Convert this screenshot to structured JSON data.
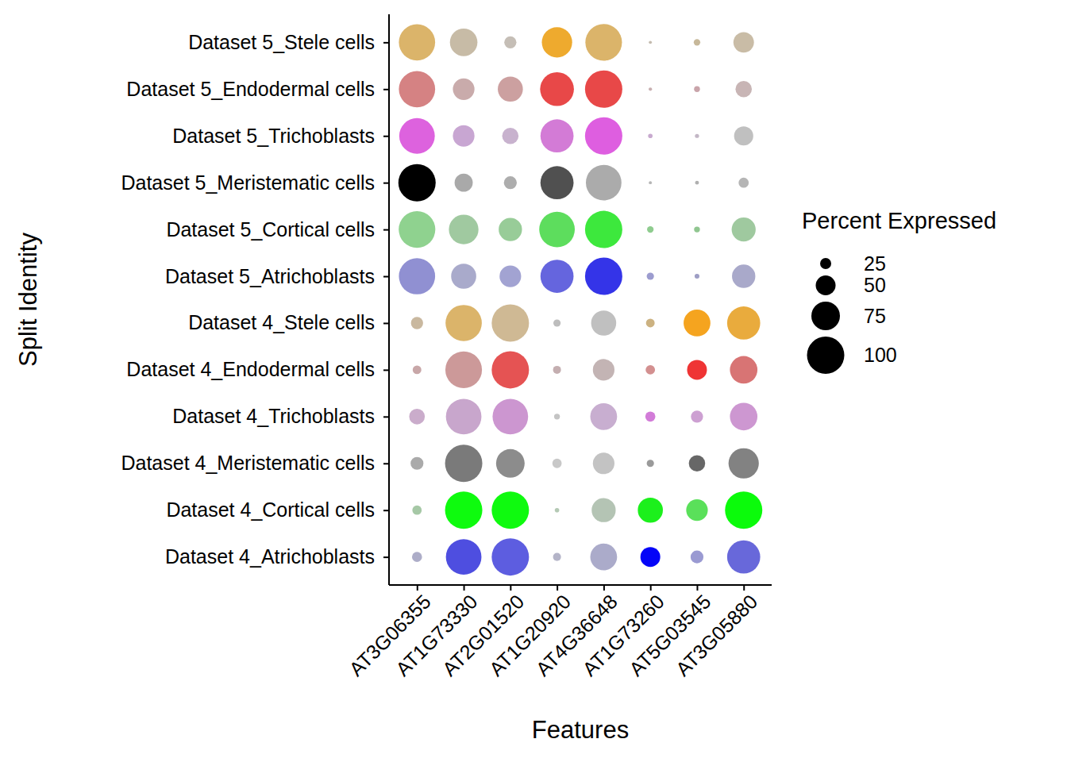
{
  "chart_data": {
    "type": "dot",
    "x_label": "Features",
    "y_label": "Split Identity",
    "features": [
      "AT3G06355",
      "AT1G73330",
      "AT2G01520",
      "AT1G20920",
      "AT4G36648",
      "AT1G73260",
      "AT5G03545",
      "AT3G05880"
    ],
    "categories": [
      "Dataset 5_Stele cells",
      "Dataset 5_Endodermal cells",
      "Dataset 5_Trichoblasts",
      "Dataset 5_Meristematic cells",
      "Dataset 5_Cortical cells",
      "Dataset 5_Atrichoblasts",
      "Dataset 4_Stele cells",
      "Dataset 4_Endodermal cells",
      "Dataset 4_Trichoblasts",
      "Dataset 4_Meristematic cells",
      "Dataset 4_Cortical cells",
      "Dataset 4_Atrichoblasts"
    ],
    "values": [
      [
        97,
        72,
        28,
        80,
        98,
        2,
        12,
        52
      ],
      [
        97,
        55,
        65,
        90,
        100,
        3,
        10,
        40
      ],
      [
        95,
        55,
        40,
        88,
        100,
        6,
        5,
        48
      ],
      [
        100,
        45,
        30,
        88,
        95,
        2,
        4,
        22
      ],
      [
        98,
        78,
        60,
        95,
        100,
        12,
        10,
        62
      ],
      [
        97,
        65,
        55,
        88,
        100,
        14,
        7,
        60
      ],
      [
        28,
        97,
        100,
        14,
        65,
        18,
        70,
        88
      ],
      [
        18,
        98,
        100,
        16,
        55,
        20,
        50,
        72
      ],
      [
        38,
        95,
        95,
        10,
        70,
        22,
        28,
        72
      ],
      [
        30,
        100,
        75,
        20,
        55,
        14,
        40,
        80
      ],
      [
        20,
        100,
        100,
        6,
        62,
        65,
        55,
        100
      ],
      [
        22,
        95,
        100,
        16,
        70,
        50,
        30,
        88
      ]
    ],
    "colors": [
      [
        "#DBB46A",
        "#C7BBA6",
        "#C5BEB6",
        "#EEAA2E",
        "#DBB46A",
        "#C4BBAF",
        "#C7B89A",
        "#C9BCA6"
      ],
      [
        "#D58283",
        "#C9ABAB",
        "#CCA0A0",
        "#E84848",
        "#E84848",
        "#C8AFB0",
        "#C9A4AA",
        "#C8B5B5"
      ],
      [
        "#DD62DE",
        "#C8A6D2",
        "#C8B2CE",
        "#D37BD6",
        "#DE5EE0",
        "#C8AACF",
        "#C3B7C6",
        "#C0C0C0"
      ],
      [
        "#000000",
        "#A9A9A9",
        "#ADADAD",
        "#505050",
        "#ABABAB",
        "#B5B5B5",
        "#B0B0B0",
        "#B5B5B5"
      ],
      [
        "#8FD28F",
        "#A0C9A0",
        "#98CC98",
        "#5DDD5D",
        "#3DE83D",
        "#8FCC8F",
        "#90C690",
        "#9FC99F"
      ],
      [
        "#9090D2",
        "#A9AACB",
        "#A2A3D2",
        "#6565DE",
        "#3434E8",
        "#9C9CCF",
        "#9E9EC5",
        "#A9A9CA"
      ],
      [
        "#C9B89F",
        "#DBB46A",
        "#CFB994",
        "#BDBDBD",
        "#C0C0C0",
        "#CCB281",
        "#F5A41F",
        "#E9AB3D"
      ],
      [
        "#C8A7A8",
        "#CC9999",
        "#E55353",
        "#C4AEB0",
        "#C3B4B4",
        "#D39090",
        "#EF3434",
        "#D87474"
      ],
      [
        "#CAACCB",
        "#C8A6CC",
        "#CC96D0",
        "#C4C4C4",
        "#C8AED0",
        "#D27CD8",
        "#CDA0D2",
        "#CD97D1"
      ],
      [
        "#AAAAAA",
        "#7A7A7A",
        "#8C8C8C",
        "#C8C8C8",
        "#C3C3C3",
        "#9A9A9A",
        "#676767",
        "#828282"
      ],
      [
        "#A6C8A6",
        "#0EFB0E",
        "#0FFA0F",
        "#B4C9B4",
        "#B4C4B4",
        "#1CF01C",
        "#5AE05A",
        "#0BFB0B"
      ],
      [
        "#ADADC8",
        "#4E4EE0",
        "#5D5DE0",
        "#B4B4C8",
        "#ABABCA",
        "#0505F8",
        "#9A9AD2",
        "#6868DA"
      ]
    ],
    "size_title": "Percent Expressed",
    "size_lim": [
      0,
      100
    ],
    "size_ticks": [
      25,
      50,
      75,
      100
    ]
  }
}
